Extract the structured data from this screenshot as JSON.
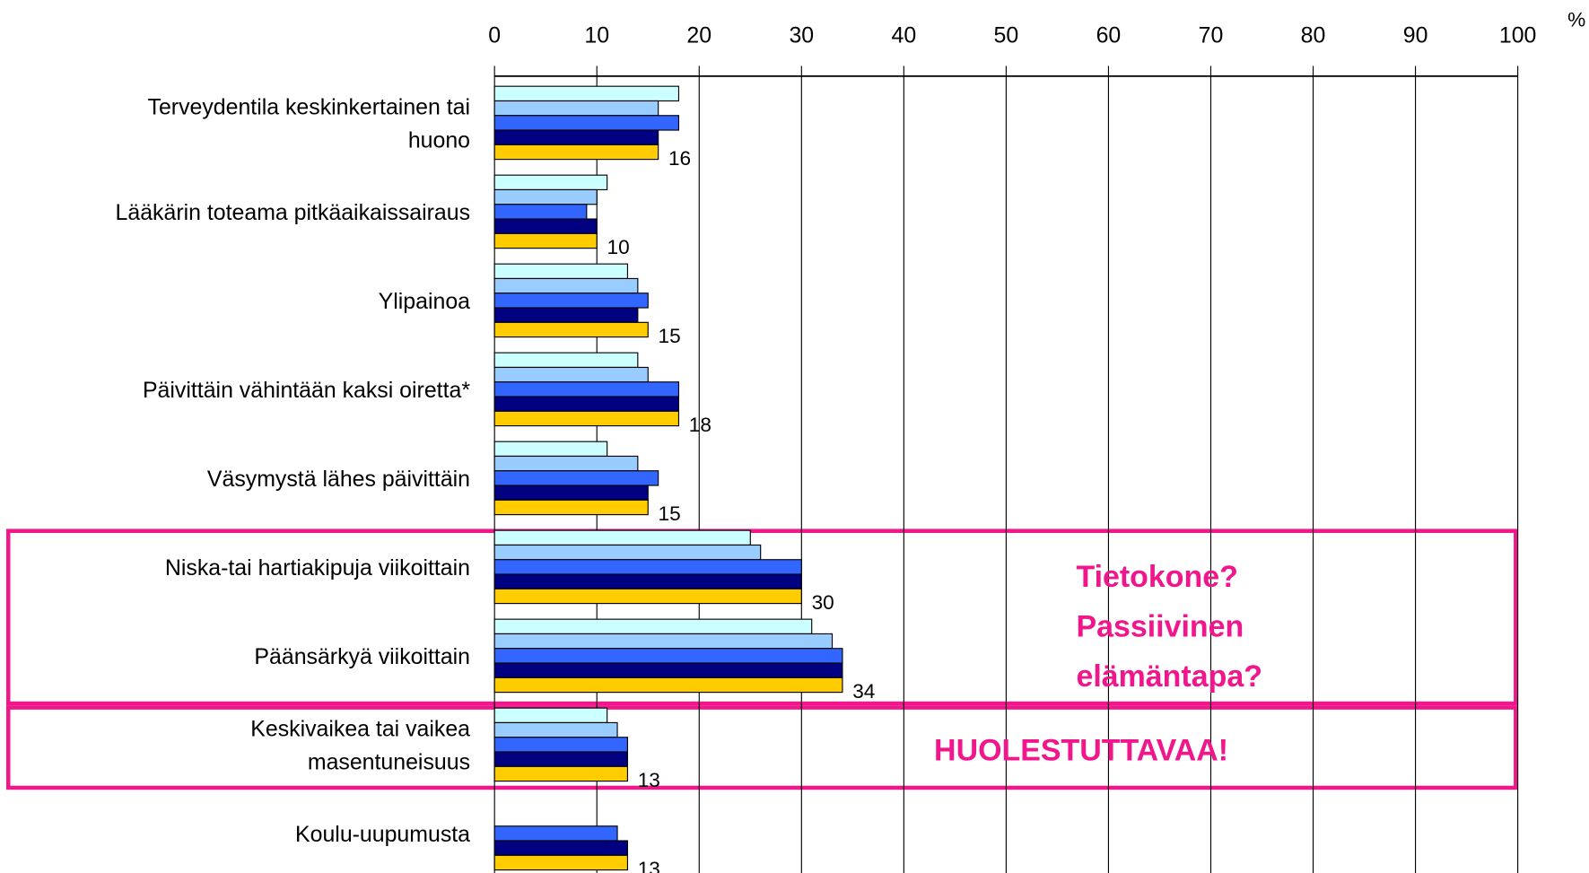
{
  "chart_data": {
    "type": "hbar",
    "unit_label": "%",
    "categories": [
      "Terveydentila keskinkertainen tai\nhuono",
      "Lääkärin toteama pitkäaikaissairaus",
      "Ylipainoa",
      "Päivittäin vähintään kaksi oiretta*",
      "Väsymystä lähes päivittäin",
      "Niska-tai hartiakipuja viikoittain",
      "Päänsärkyä viikoittain",
      "Keskivaikea tai vaikea\nmasentuneisuus",
      "Koulu-uupumusta"
    ],
    "series": [
      {
        "color": "#ccffff",
        "values": [
          18,
          11,
          13,
          14,
          11,
          25,
          31,
          11,
          null
        ]
      },
      {
        "color": "#99ccff",
        "values": [
          16,
          10,
          14,
          15,
          14,
          26,
          33,
          12,
          null
        ]
      },
      {
        "color": "#3366ff",
        "values": [
          18,
          9,
          15,
          18,
          16,
          30,
          34,
          13,
          12
        ]
      },
      {
        "color": "#000080",
        "values": [
          16,
          10,
          14,
          18,
          15,
          30,
          34,
          13,
          13
        ]
      },
      {
        "color": "#ffcc00",
        "values": [
          16,
          10,
          15,
          18,
          15,
          30,
          34,
          13,
          13
        ]
      }
    ],
    "xlim": [
      0,
      100
    ],
    "xticks": [
      0,
      10,
      20,
      30,
      40,
      50,
      60,
      70,
      80,
      90,
      100
    ],
    "grid": true,
    "annotations": [
      {
        "lines": [
          "Tietokone?",
          "Passiivinen",
          "elämäntapa?"
        ],
        "color": "#f0168c"
      },
      {
        "lines": [
          "HUOLESTUTTAVAA!"
        ],
        "color": "#f0168c"
      }
    ]
  }
}
